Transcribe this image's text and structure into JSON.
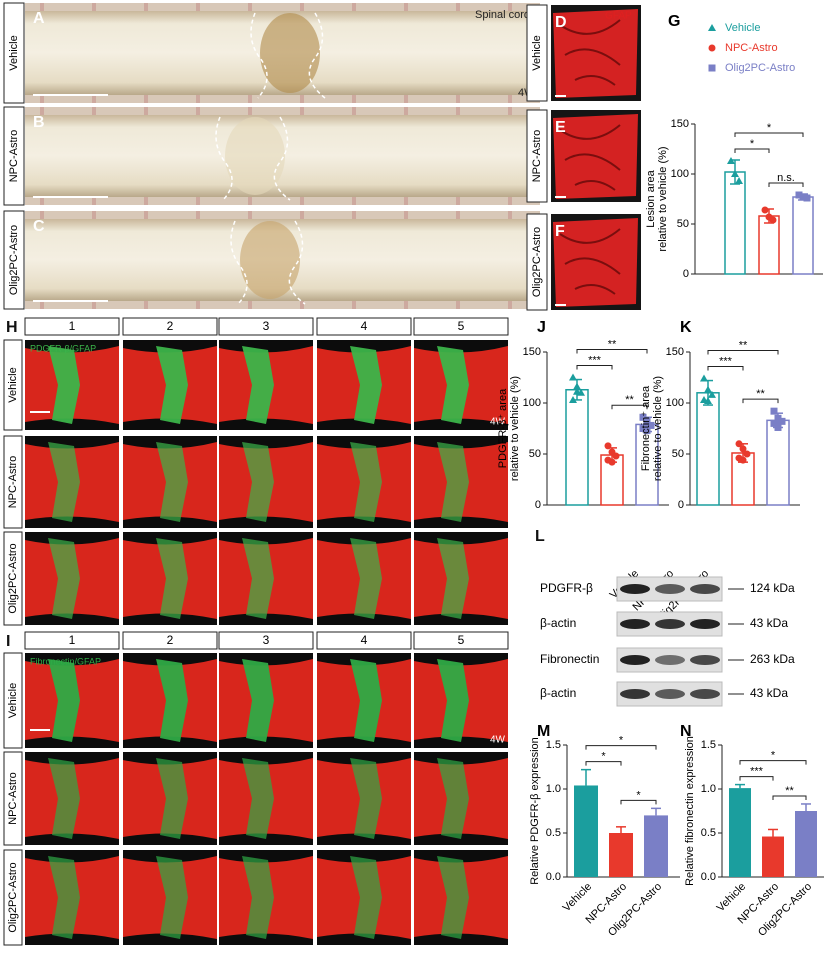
{
  "panels_abc": {
    "labels": [
      "A",
      "B",
      "C"
    ],
    "rows": [
      "Vehicle",
      "NPC-Astro",
      "Olig2PC-Astro"
    ],
    "top_text": "Spinal cord",
    "time": "4W"
  },
  "panels_def": {
    "labels": [
      "D",
      "E",
      "F"
    ],
    "stain": "GFAP"
  },
  "panel_h": {
    "label": "H",
    "columns": [
      "1",
      "2",
      "3",
      "4",
      "5"
    ],
    "rows": [
      "Vehicle",
      "NPC-Astro",
      "Olig2PC-Astro"
    ],
    "stain": "PDGFR-β/GFAP",
    "time": "4W"
  },
  "panel_i": {
    "label": "I",
    "columns": [
      "1",
      "2",
      "3",
      "4",
      "5"
    ],
    "rows": [
      "Vehicle",
      "NPC-Astro",
      "Olig2PC-Astro"
    ],
    "stain": "Fibronectin/GFAP",
    "time": "4W"
  },
  "panel_l": {
    "label": "L",
    "lanes": [
      "Vehicle",
      "NPC-Astro",
      "Olig2PC-Astro"
    ],
    "bands": [
      "PDGFR-β",
      "β-actin",
      "Fibronectin",
      "β-actin"
    ],
    "sizes": [
      "124 kDa",
      "43 kDa",
      "263 kDa",
      "43 kDa"
    ]
  },
  "chart_data": [
    {
      "type": "dotbar",
      "panel": "G",
      "legend": [
        "Vehicle",
        "NPC-Astro",
        "Olig2PC-Astro"
      ],
      "markers": [
        "triangle",
        "circle",
        "square"
      ],
      "colors": [
        "#1b9e9e",
        "#e8392c",
        "#7a7fc6"
      ],
      "ylabel": [
        "Lesion area",
        "relative to vehicle (%)"
      ],
      "ylim": [
        0,
        150
      ],
      "yticks": [
        0,
        50,
        100,
        150
      ],
      "values": [
        102,
        58,
        77
      ],
      "errors": [
        12,
        7,
        3
      ],
      "points": [
        [
          113,
          100,
          93
        ],
        [
          64,
          57,
          54
        ],
        [
          79,
          77,
          76
        ]
      ],
      "significance": [
        "*",
        "*",
        "n.s."
      ]
    },
    {
      "type": "dotbar",
      "panel": "J",
      "markers": [
        "triangle",
        "circle",
        "square"
      ],
      "colors": [
        "#1b9e9e",
        "#e8392c",
        "#7a7fc6"
      ],
      "ylabel": [
        "PDGFR-β⁺ area",
        "relative to vehicle (%)"
      ],
      "ylim": [
        0,
        150
      ],
      "yticks": [
        0,
        50,
        100,
        150
      ],
      "values": [
        113,
        49,
        79
      ],
      "errors": [
        10,
        7,
        7
      ],
      "points": [
        [
          125,
          116,
          110,
          103,
          111
        ],
        [
          58,
          52,
          48,
          44,
          42
        ],
        [
          86,
          82,
          78,
          75,
          73
        ]
      ],
      "significance": [
        "**",
        "***",
        "**"
      ]
    },
    {
      "type": "dotbar",
      "panel": "K",
      "markers": [
        "triangle",
        "circle",
        "square"
      ],
      "colors": [
        "#1b9e9e",
        "#e8392c",
        "#7a7fc6"
      ],
      "ylabel": [
        "Fibronectin⁺ area",
        "relative to vehicle (%)"
      ],
      "ylim": [
        0,
        150
      ],
      "yticks": [
        0,
        50,
        100,
        150
      ],
      "values": [
        110,
        51,
        83
      ],
      "errors": [
        12,
        9,
        7
      ],
      "points": [
        [
          124,
          113,
          108,
          103,
          102
        ],
        [
          60,
          55,
          50,
          46,
          44
        ],
        [
          92,
          85,
          82,
          80,
          76
        ]
      ],
      "significance": [
        "**",
        "***",
        "**"
      ]
    },
    {
      "type": "bar",
      "panel": "M",
      "categories": [
        "Vehicle",
        "NPC-Astro",
        "Olig2PC-Astro"
      ],
      "colors": [
        "#1b9e9e",
        "#e8392c",
        "#7a7fc6"
      ],
      "ylabel": [
        "Relative  PDGFR-β expression"
      ],
      "ylim": [
        0,
        1.5
      ],
      "yticks": [
        {
          "value": 0,
          "label": "0.0"
        },
        0.5,
        {
          "value": 1,
          "label": "1.0"
        },
        1.5
      ],
      "values": [
        1.04,
        0.5,
        0.7
      ],
      "errors": [
        0.18,
        0.07,
        0.08
      ],
      "significance": [
        "*",
        "*",
        "*"
      ]
    },
    {
      "type": "bar",
      "panel": "N",
      "categories": [
        "Vehicle",
        "NPC-Astro",
        "Olig2PC-Astro"
      ],
      "colors": [
        "#1b9e9e",
        "#e8392c",
        "#7a7fc6"
      ],
      "ylabel": [
        "Relative fibronectin expression"
      ],
      "ylim": [
        0,
        1.5
      ],
      "yticks": [
        {
          "value": 0,
          "label": "0.0"
        },
        0.5,
        {
          "value": 1,
          "label": "1.0"
        },
        1.5
      ],
      "values": [
        1.01,
        0.46,
        0.75
      ],
      "errors": [
        0.04,
        0.08,
        0.08
      ],
      "significance": [
        "*",
        "***",
        "**"
      ]
    }
  ]
}
